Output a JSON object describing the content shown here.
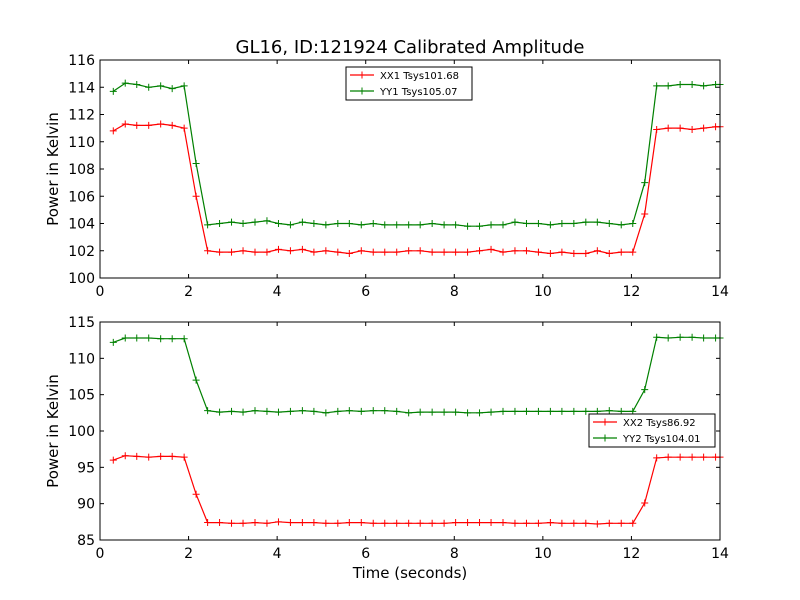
{
  "figure_title": "GL16, ID:121924 Calibrated Amplitude",
  "xlabel": "Time (seconds)",
  "colors": {
    "xx": "#ff0000",
    "yy": "#008000"
  },
  "chart_data": [
    {
      "type": "line",
      "title": "GL16, ID:121924 Calibrated Amplitude",
      "xlabel": "",
      "ylabel": "Power in Kelvin",
      "xlim": [
        0,
        14
      ],
      "ylim": [
        100,
        116
      ],
      "xticks": [
        0,
        2,
        4,
        6,
        8,
        10,
        12,
        14
      ],
      "yticks": [
        100,
        102,
        104,
        106,
        108,
        110,
        112,
        114,
        116
      ],
      "grid": false,
      "legend_position": "top-center",
      "x": [
        0.3,
        0.57,
        0.83,
        1.1,
        1.37,
        1.63,
        1.9,
        2.17,
        2.43,
        2.7,
        2.97,
        3.23,
        3.5,
        3.77,
        4.03,
        4.3,
        4.57,
        4.83,
        5.1,
        5.37,
        5.63,
        5.9,
        6.17,
        6.43,
        6.7,
        6.97,
        7.23,
        7.5,
        7.77,
        8.03,
        8.3,
        8.57,
        8.83,
        9.1,
        9.37,
        9.63,
        9.9,
        10.17,
        10.43,
        10.7,
        10.97,
        11.23,
        11.5,
        11.77,
        12.03,
        12.3,
        12.57,
        12.83,
        13.1,
        13.37,
        13.63,
        13.9,
        14.0
      ],
      "series": [
        {
          "name": "XX1 Tsys101.68",
          "color": "#ff0000",
          "values": [
            110.8,
            111.3,
            111.2,
            111.2,
            111.3,
            111.2,
            111.0,
            106.0,
            102.0,
            101.9,
            101.9,
            102.0,
            101.9,
            101.9,
            102.1,
            102.0,
            102.1,
            101.9,
            102.0,
            101.9,
            101.8,
            102.0,
            101.9,
            101.9,
            101.9,
            102.0,
            102.0,
            101.9,
            101.9,
            101.9,
            101.9,
            102.0,
            102.1,
            101.9,
            102.0,
            102.0,
            101.9,
            101.8,
            101.9,
            101.8,
            101.8,
            102.0,
            101.8,
            101.9,
            101.9,
            104.7,
            110.9,
            111.0,
            111.0,
            110.9,
            111.0,
            111.1,
            111.1
          ]
        },
        {
          "name": "YY1 Tsys105.07",
          "color": "#008000",
          "values": [
            113.7,
            114.3,
            114.2,
            114.0,
            114.1,
            113.9,
            114.1,
            108.4,
            103.9,
            104.0,
            104.1,
            104.0,
            104.1,
            104.2,
            104.0,
            103.9,
            104.1,
            104.0,
            103.9,
            104.0,
            104.0,
            103.9,
            104.0,
            103.9,
            103.9,
            103.9,
            103.9,
            104.0,
            103.9,
            103.9,
            103.8,
            103.8,
            103.9,
            103.9,
            104.1,
            104.0,
            104.0,
            103.9,
            104.0,
            104.0,
            104.1,
            104.1,
            104.0,
            103.9,
            104.0,
            107.0,
            114.1,
            114.1,
            114.2,
            114.2,
            114.1,
            114.2,
            114.2
          ]
        }
      ]
    },
    {
      "type": "line",
      "title": "",
      "xlabel": "Time (seconds)",
      "ylabel": "Power in Kelvin",
      "xlim": [
        0,
        14
      ],
      "ylim": [
        85,
        115
      ],
      "xticks": [
        0,
        2,
        4,
        6,
        8,
        10,
        12,
        14
      ],
      "yticks": [
        85,
        90,
        95,
        100,
        105,
        110,
        115
      ],
      "grid": false,
      "legend_position": "center-right",
      "x": [
        0.3,
        0.57,
        0.83,
        1.1,
        1.37,
        1.63,
        1.9,
        2.17,
        2.43,
        2.7,
        2.97,
        3.23,
        3.5,
        3.77,
        4.03,
        4.3,
        4.57,
        4.83,
        5.1,
        5.37,
        5.63,
        5.9,
        6.17,
        6.43,
        6.7,
        6.97,
        7.23,
        7.5,
        7.77,
        8.03,
        8.3,
        8.57,
        8.83,
        9.1,
        9.37,
        9.63,
        9.9,
        10.17,
        10.43,
        10.7,
        10.97,
        11.23,
        11.5,
        11.77,
        12.03,
        12.3,
        12.57,
        12.83,
        13.1,
        13.37,
        13.63,
        13.9,
        14.0
      ],
      "series": [
        {
          "name": "XX2 Tsys86.92",
          "color": "#ff0000",
          "values": [
            96.0,
            96.6,
            96.5,
            96.4,
            96.5,
            96.5,
            96.4,
            91.3,
            87.4,
            87.4,
            87.3,
            87.3,
            87.4,
            87.3,
            87.5,
            87.4,
            87.4,
            87.4,
            87.3,
            87.3,
            87.4,
            87.4,
            87.3,
            87.3,
            87.3,
            87.3,
            87.3,
            87.3,
            87.3,
            87.4,
            87.4,
            87.4,
            87.4,
            87.4,
            87.3,
            87.3,
            87.3,
            87.4,
            87.3,
            87.3,
            87.3,
            87.2,
            87.3,
            87.3,
            87.3,
            90.1,
            96.3,
            96.4,
            96.4,
            96.4,
            96.4,
            96.4,
            96.4
          ]
        },
        {
          "name": "YY2 Tsys104.01",
          "color": "#008000",
          "values": [
            112.2,
            112.8,
            112.8,
            112.8,
            112.7,
            112.7,
            112.7,
            107.0,
            102.8,
            102.6,
            102.7,
            102.6,
            102.8,
            102.7,
            102.6,
            102.7,
            102.8,
            102.7,
            102.5,
            102.7,
            102.8,
            102.7,
            102.8,
            102.8,
            102.7,
            102.5,
            102.6,
            102.6,
            102.6,
            102.6,
            102.5,
            102.5,
            102.6,
            102.7,
            102.7,
            102.7,
            102.7,
            102.7,
            102.7,
            102.7,
            102.7,
            102.7,
            102.8,
            102.7,
            102.7,
            105.7,
            112.9,
            112.8,
            112.9,
            112.9,
            112.8,
            112.8,
            112.8
          ]
        }
      ]
    }
  ]
}
